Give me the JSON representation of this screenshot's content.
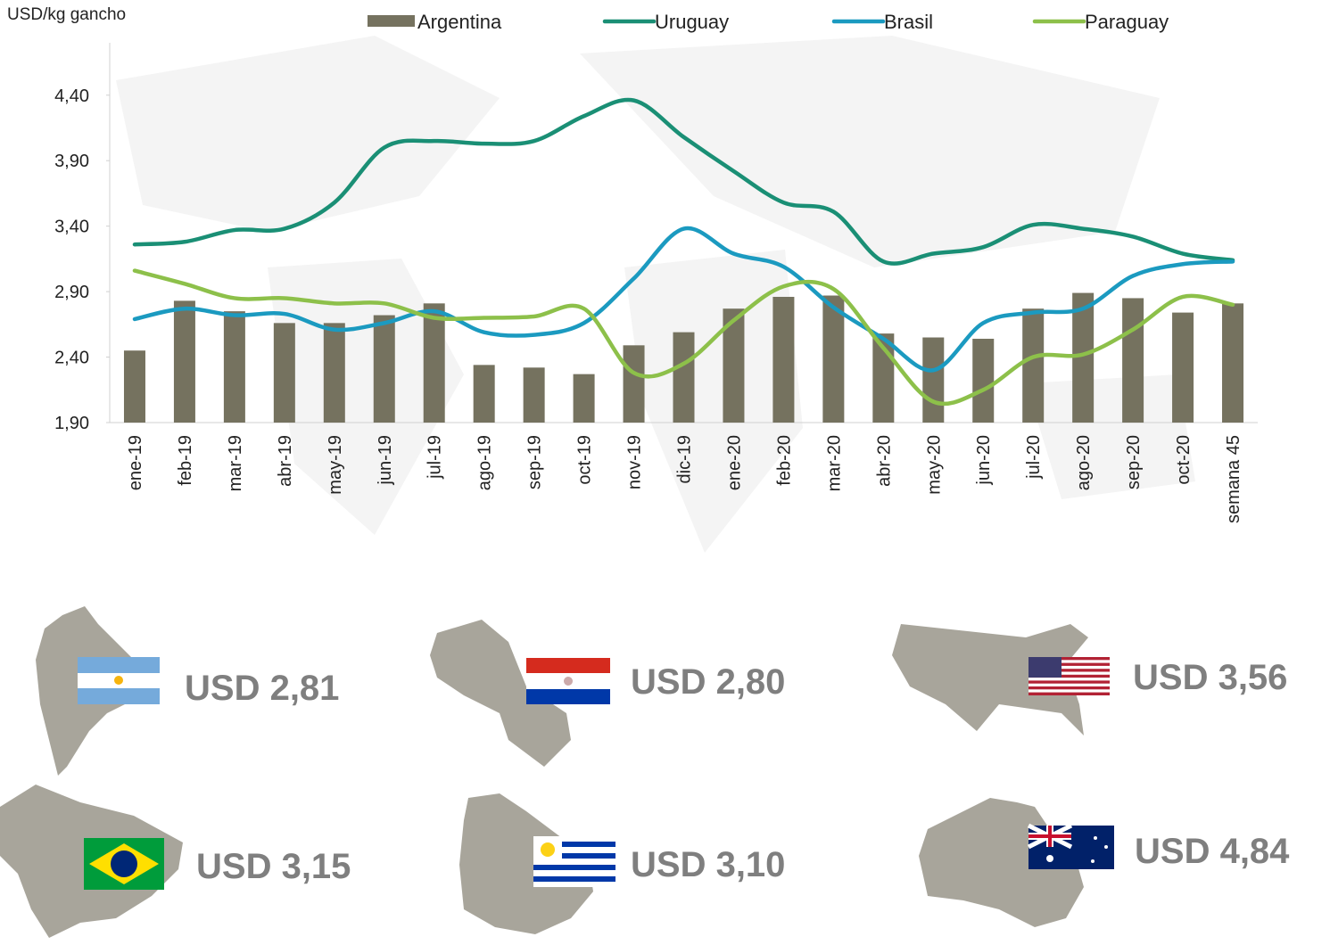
{
  "chart_data": {
    "type": "bar-line",
    "y_axis_label": "USD/kg gancho",
    "categories": [
      "ene-19",
      "feb-19",
      "mar-19",
      "abr-19",
      "may-19",
      "jun-19",
      "jul-19",
      "ago-19",
      "sep-19",
      "oct-19",
      "nov-19",
      "dic-19",
      "ene-20",
      "feb-20",
      "mar-20",
      "abr-20",
      "may-20",
      "jun-20",
      "jul-20",
      "ago-20",
      "sep-20",
      "oct-20",
      "semana 45"
    ],
    "series": [
      {
        "name": "Argentina",
        "kind": "bar",
        "color": "#75725f",
        "values": [
          2.45,
          2.83,
          2.75,
          2.66,
          2.66,
          2.72,
          2.81,
          2.34,
          2.32,
          2.27,
          2.49,
          2.59,
          2.77,
          2.86,
          2.87,
          2.58,
          2.55,
          2.54,
          2.77,
          2.89,
          2.85,
          2.74,
          2.81
        ]
      },
      {
        "name": "Uruguay",
        "kind": "line",
        "color": "#1a8f75",
        "values": [
          3.26,
          3.28,
          3.37,
          3.38,
          3.58,
          4.0,
          4.05,
          4.03,
          4.05,
          4.24,
          4.36,
          4.08,
          3.82,
          3.58,
          3.51,
          3.13,
          3.19,
          3.24,
          3.41,
          3.38,
          3.32,
          3.19,
          3.14
        ]
      },
      {
        "name": "Brasil",
        "kind": "line",
        "color": "#1b9ac0",
        "values": [
          2.69,
          2.77,
          2.72,
          2.73,
          2.61,
          2.66,
          2.75,
          2.59,
          2.57,
          2.66,
          3.0,
          3.38,
          3.19,
          3.09,
          2.78,
          2.54,
          2.3,
          2.66,
          2.74,
          2.77,
          3.02,
          3.11,
          3.13
        ]
      },
      {
        "name": "Paraguay",
        "kind": "line",
        "color": "#8dc04a",
        "values": [
          3.06,
          2.96,
          2.85,
          2.85,
          2.81,
          2.81,
          2.7,
          2.7,
          2.71,
          2.77,
          2.28,
          2.35,
          2.68,
          2.94,
          2.92,
          2.47,
          2.06,
          2.15,
          2.4,
          2.42,
          2.61,
          2.86,
          2.8
        ]
      }
    ],
    "ylim": [
      1.9,
      4.8
    ],
    "yticks": [
      {
        "value": 1.9,
        "label": "1,90"
      },
      {
        "value": 2.4,
        "label": "2,40"
      },
      {
        "value": 2.9,
        "label": "2,90"
      },
      {
        "value": 3.4,
        "label": "3,40"
      },
      {
        "value": 3.9,
        "label": "3,90"
      },
      {
        "value": 4.4,
        "label": "4,40"
      }
    ],
    "grid": false
  },
  "prices": [
    "USD 2,81",
    "USD 2,80",
    "USD 3,56",
    "USD 3,15",
    "USD 3,10",
    "USD 4,84"
  ]
}
